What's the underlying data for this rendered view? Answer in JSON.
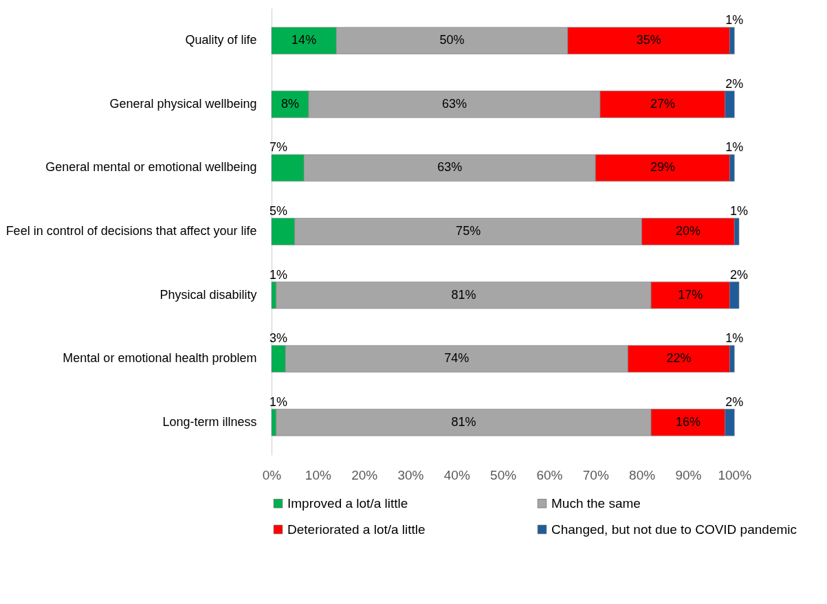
{
  "chart_data": {
    "type": "bar",
    "orientation": "horizontal",
    "stacked": true,
    "categories": [
      "Quality of life",
      "General physical wellbeing",
      "General mental or emotional wellbeing",
      "Feel in control of decisions that affect your life",
      "Physical disability",
      "Mental or emotional health problem",
      "Long-term illness"
    ],
    "series": [
      {
        "name": "Improved a lot/a little",
        "color": "#00b050",
        "values": [
          14,
          8,
          7,
          5,
          1,
          3,
          1
        ],
        "value_labels": [
          "14%",
          "8%",
          "7%",
          "5%",
          "1%",
          "3%",
          "1%"
        ]
      },
      {
        "name": "Much the same",
        "color": "#a6a6a6",
        "values": [
          50,
          63,
          63,
          75,
          81,
          74,
          81
        ],
        "value_labels": [
          "50%",
          "63%",
          "63%",
          "75%",
          "81%",
          "74%",
          "81%"
        ]
      },
      {
        "name": "Deteriorated a lot/a little",
        "color": "#ff0000",
        "values": [
          35,
          27,
          29,
          20,
          17,
          22,
          16
        ],
        "value_labels": [
          "35%",
          "27%",
          "29%",
          "20%",
          "17%",
          "22%",
          "16%"
        ]
      },
      {
        "name": "Changed, but not due to COVID pandemic",
        "color": "#1f5c99",
        "values": [
          1,
          2,
          1,
          1,
          2,
          1,
          2
        ],
        "value_labels": [
          "1%",
          "2%",
          "1%",
          "1%",
          "2%",
          "1%",
          "2%"
        ]
      }
    ],
    "xlim": [
      0,
      101
    ],
    "xticks": [
      {
        "value": 0,
        "label": "0%"
      },
      {
        "value": 10,
        "label": "10%"
      },
      {
        "value": 20,
        "label": "20%"
      },
      {
        "value": 30,
        "label": "30%"
      },
      {
        "value": 40,
        "label": "40%"
      },
      {
        "value": 50,
        "label": "50%"
      },
      {
        "value": 60,
        "label": "60%"
      },
      {
        "value": 70,
        "label": "70%"
      },
      {
        "value": 80,
        "label": "80%"
      },
      {
        "value": 90,
        "label": "90%"
      },
      {
        "value": 100,
        "label": "100%"
      }
    ],
    "grid": false,
    "legend": "bottom"
  }
}
